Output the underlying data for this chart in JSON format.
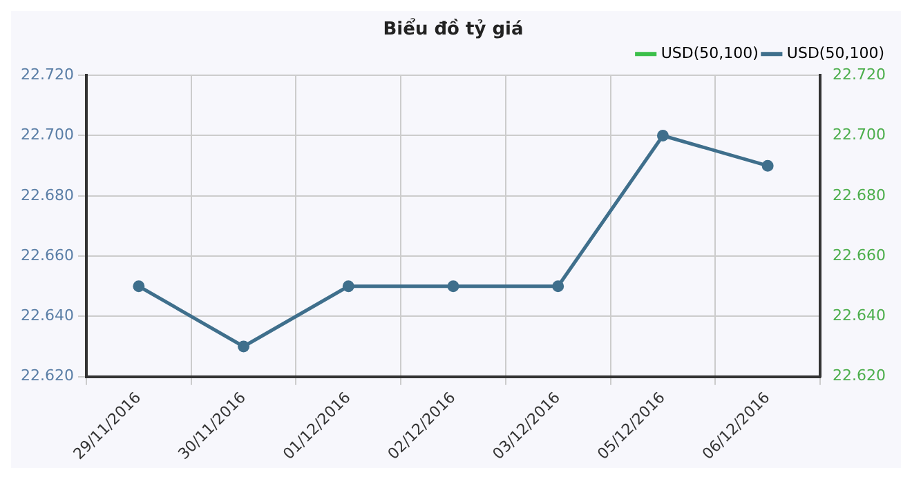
{
  "chart_data": {
    "type": "line",
    "title": "Biểu đồ tỷ giá",
    "categories": [
      "29/11/2016",
      "30/11/2016",
      "01/12/2016",
      "02/12/2016",
      "03/12/2016",
      "05/12/2016",
      "06/12/2016"
    ],
    "series": [
      {
        "name": "USD(50,100)",
        "color": "#3bbf4a",
        "values": [
          null,
          null,
          null,
          null,
          null,
          null,
          null
        ]
      },
      {
        "name": "USD(50,100)",
        "color": "#3f6f8c",
        "values": [
          22.65,
          22.63,
          22.65,
          22.65,
          22.65,
          22.7,
          22.69
        ]
      }
    ],
    "ylim": [
      22.62,
      22.72
    ],
    "yticks": [
      {
        "value": 22.62,
        "label": "22.620"
      },
      {
        "value": 22.64,
        "label": "22.640"
      },
      {
        "value": 22.66,
        "label": "22.660"
      },
      {
        "value": 22.68,
        "label": "22.680"
      },
      {
        "value": 22.7,
        "label": "22.700"
      },
      {
        "value": 22.72,
        "label": "22.720"
      }
    ],
    "y2lim": [
      22.62,
      22.72
    ],
    "y2ticks": [
      {
        "value": 22.62,
        "label": "22.620"
      },
      {
        "value": 22.64,
        "label": "22.640"
      },
      {
        "value": 22.66,
        "label": "22.660"
      },
      {
        "value": 22.68,
        "label": "22.680"
      },
      {
        "value": 22.7,
        "label": "22.700"
      },
      {
        "value": 22.72,
        "label": "22.720"
      }
    ],
    "grid": true,
    "legend": "top right",
    "marker": "circle",
    "line_style": "solid"
  }
}
